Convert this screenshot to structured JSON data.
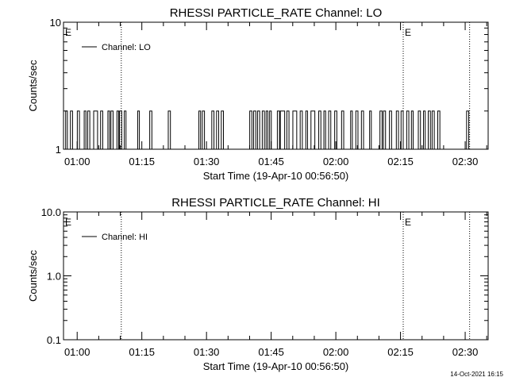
{
  "footer": {
    "timestamp": "14-Oct-2021 16:15"
  },
  "chart_data": [
    {
      "type": "line",
      "title": "RHESSI PARTICLE_RATE Channel: LO",
      "xlabel": "Start Time (19-Apr-10 00:56:50)",
      "ylabel": "Counts/sec",
      "yscale": "log",
      "ylim": [
        1,
        10
      ],
      "yticks": [
        "1",
        "10"
      ],
      "xlim_minutes": [
        0,
        98.5
      ],
      "xticks": [
        "01:00",
        "01:15",
        "01:30",
        "01:45",
        "02:00",
        "02:15",
        "02:30"
      ],
      "xticks_minutes": [
        3.17,
        18.17,
        33.17,
        48.17,
        63.17,
        78.17,
        93.17
      ],
      "legend": {
        "label": "Channel: LO",
        "placement": "top-left"
      },
      "event_markers": [
        {
          "label": "E",
          "minute": 0
        },
        {
          "label": "E",
          "minute": 78.8
        }
      ],
      "vlines_minutes": [
        13.4,
        78.8,
        94.2
      ],
      "series": [
        {
          "name": "Channel: LO",
          "pulses": [
            [
              0.5,
              0.9
            ],
            [
              1.6,
              2.1
            ],
            [
              3.2,
              3.7
            ],
            [
              4.8,
              5.2
            ],
            [
              5.6,
              6.1
            ],
            [
              7.0,
              7.9
            ],
            [
              8.6,
              9.1
            ],
            [
              10.3,
              10.7
            ],
            [
              11.0,
              11.5
            ],
            [
              12.4,
              12.8
            ],
            [
              13.0,
              13.5
            ],
            [
              14.1,
              14.5
            ],
            [
              17.2,
              17.6
            ],
            [
              20.0,
              20.5
            ],
            [
              24.3,
              24.8
            ],
            [
              31.4,
              31.8
            ],
            [
              32.2,
              32.7
            ],
            [
              34.4,
              34.9
            ],
            [
              35.5,
              36.0
            ],
            [
              36.6,
              37.1
            ],
            [
              43.2,
              43.7
            ],
            [
              44.1,
              44.6
            ],
            [
              45.0,
              45.5
            ],
            [
              46.1,
              46.6
            ],
            [
              47.0,
              47.4
            ],
            [
              47.8,
              48.2
            ],
            [
              49.6,
              50.1
            ],
            [
              50.3,
              51.3
            ],
            [
              51.8,
              52.3
            ],
            [
              53.2,
              54.1
            ],
            [
              54.9,
              55.4
            ],
            [
              56.2,
              56.6
            ],
            [
              57.4,
              58.3
            ],
            [
              59.2,
              59.7
            ],
            [
              60.4,
              60.8
            ],
            [
              61.5,
              62.0
            ],
            [
              62.9,
              63.4
            ],
            [
              64.5,
              65.0
            ],
            [
              66.6,
              67.0
            ],
            [
              67.8,
              68.3
            ],
            [
              69.1,
              69.6
            ],
            [
              71.0,
              71.4
            ],
            [
              73.4,
              73.9
            ],
            [
              74.2,
              74.7
            ],
            [
              75.6,
              76.1
            ],
            [
              77.2,
              77.7
            ],
            [
              78.3,
              78.8
            ],
            [
              79.6,
              80.1
            ],
            [
              80.7,
              81.1
            ],
            [
              82.3,
              82.8
            ],
            [
              83.5,
              83.9
            ],
            [
              84.6,
              85.1
            ],
            [
              85.5,
              86.0
            ],
            [
              86.8,
              87.3
            ],
            [
              93.5,
              94.0
            ]
          ]
        }
      ]
    },
    {
      "type": "line",
      "title": "RHESSI PARTICLE_RATE Channel: HI",
      "xlabel": "Start Time (19-Apr-10 00:56:50)",
      "ylabel": "Counts/sec",
      "yscale": "log",
      "ylim": [
        0.1,
        10
      ],
      "yticks": [
        "0.1",
        "1.0",
        "10.0"
      ],
      "xlim_minutes": [
        0,
        98.5
      ],
      "xticks": [
        "01:00",
        "01:15",
        "01:30",
        "01:45",
        "02:00",
        "02:15",
        "02:30"
      ],
      "xticks_minutes": [
        3.17,
        18.17,
        33.17,
        48.17,
        63.17,
        78.17,
        93.17
      ],
      "legend": {
        "label": "Channel: HI",
        "placement": "top-left"
      },
      "event_markers": [
        {
          "label": "E",
          "minute": 0
        },
        {
          "label": "E",
          "minute": 78.8
        }
      ],
      "vlines_minutes": [
        13.4,
        78.8,
        94.2
      ],
      "series": [
        {
          "name": "Channel: HI",
          "pulses": []
        }
      ]
    }
  ]
}
